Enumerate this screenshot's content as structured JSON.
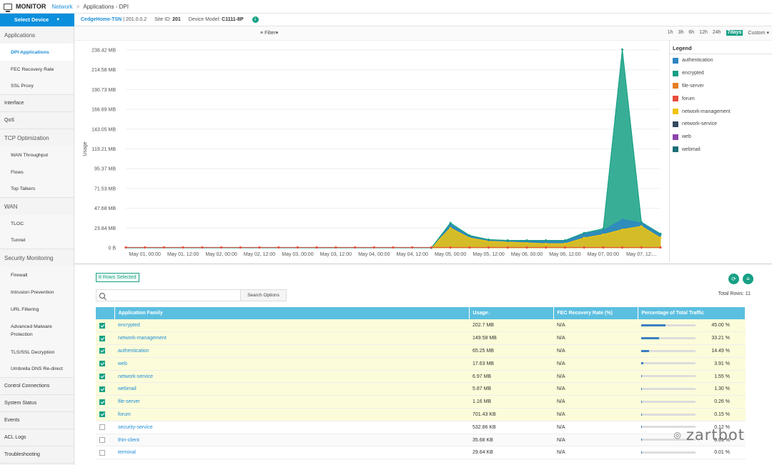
{
  "header": {
    "title": "MONITOR",
    "crumb_network": "Network",
    "crumb_sep": ">",
    "page": "Applications - DPI"
  },
  "device": {
    "select_label": "Select Device",
    "host": "CedgeHome-TSN",
    "host_ip": "| 201.0.0.2",
    "site_label": "Site ID:",
    "site_id": "201",
    "model_label": "Device Model:",
    "model": "C1111-8P",
    "info_icon": "info-icon",
    "info_glyph": "i"
  },
  "sidebar": {
    "applications": "Applications",
    "dpi_applications": "DPI Applications",
    "fec_recovery_rate": "FEC Recovery Rate",
    "ssl_proxy": "SSL Proxy",
    "interface": "Interface",
    "qos": "QoS",
    "tcp_optimization": "TCP Optimization",
    "wan_throughput": "WAN Throughput",
    "flows": "Flows",
    "top_talkers": "Top Talkers",
    "wan": "WAN",
    "tloc": "TLOC",
    "tunnel": "Tunnel",
    "security_monitoring": "Security Monitoring",
    "firewall": "Firewall",
    "intrusion_prevention": "Intrusion Prevention",
    "url_filtering": "URL Filtering",
    "amp_line1": "Advanced Malware",
    "amp_line2": "Protection",
    "tls_ssl_decryption": "TLS/SSL Decryption",
    "umbrella_dns": "Umbrella DNS Re-direct",
    "control_connections": "Control Connections",
    "system_status": "System Status",
    "events": "Events",
    "acl_logs": "ACL Logs",
    "troubleshooting": "Troubleshooting"
  },
  "toolbar": {
    "filter_label": "Filter",
    "t1h": "1h",
    "t3h": "3h",
    "t6h": "6h",
    "t12h": "12h",
    "t24h": "24h",
    "t7days": "7days",
    "custom": "Custom",
    "active_range": "7days"
  },
  "legend": {
    "title": "Legend",
    "items": [
      {
        "label": "authentication",
        "color": "#2e86c1"
      },
      {
        "label": "encrypted",
        "color": "#16a085"
      },
      {
        "label": "file-server",
        "color": "#e67e22"
      },
      {
        "label": "forum",
        "color": "#e74c3c"
      },
      {
        "label": "network-management",
        "color": "#f1c40f"
      },
      {
        "label": "network-service",
        "color": "#34495e"
      },
      {
        "label": "web",
        "color": "#8e44ad"
      },
      {
        "label": "webmail",
        "color": "#1a6e77"
      }
    ]
  },
  "chart_data": {
    "type": "area",
    "ylabel": "Usage",
    "y_ticks": [
      "0 B",
      "23.84 MB",
      "47.68 MB",
      "71.53 MB",
      "95.37 MB",
      "119.21 MB",
      "143.05 MB",
      "166.89 MB",
      "190.73 MB",
      "214.58 MB",
      "238.42 MB"
    ],
    "y_tick_values": [
      0,
      23.84,
      47.68,
      71.53,
      95.37,
      119.21,
      143.05,
      166.89,
      190.73,
      214.58,
      238.42
    ],
    "ylim": [
      0,
      238.42
    ],
    "x_ticks": [
      "May 01, 00:00",
      "May 01, 12:00",
      "May 02, 00:00",
      "May 02, 12:00",
      "May 03, 00:00",
      "May 03, 12:00",
      "May 04, 00:00",
      "May 04, 12:00",
      "May 05, 00:00",
      "May 05, 12:00",
      "May 06, 00:00",
      "May 06, 12:00",
      "May 07, 00:00",
      "May 07, 12:..."
    ],
    "x_hours": [
      0,
      6,
      12,
      18,
      24,
      30,
      36,
      42,
      48,
      54,
      60,
      66,
      72,
      78,
      84,
      90,
      96,
      102,
      108,
      114,
      120,
      126,
      132,
      138,
      144,
      150,
      156,
      162,
      168
    ],
    "series": [
      {
        "name": "authentication",
        "values": [
          0,
          0,
          0,
          0,
          0,
          0,
          0,
          0,
          0,
          0,
          0,
          0,
          0,
          0,
          0,
          0,
          0,
          4,
          2,
          1,
          1,
          2,
          3,
          3,
          5,
          5,
          12,
          4,
          4
        ]
      },
      {
        "name": "encrypted",
        "values": [
          0,
          0,
          0,
          0,
          0,
          0,
          0,
          0,
          0,
          0,
          0,
          0,
          0,
          0,
          0,
          0,
          0,
          2,
          1,
          1,
          1,
          1,
          1,
          1,
          1,
          2,
          205,
          1,
          1
        ]
      },
      {
        "name": "network-management",
        "values": [
          0,
          0,
          0,
          0,
          0,
          0,
          0,
          0,
          0,
          0,
          0,
          0,
          0,
          0,
          0,
          0,
          0,
          24,
          12,
          8,
          7,
          6,
          5,
          5,
          12,
          16,
          22,
          26,
          12
        ]
      },
      {
        "name": "forum",
        "values": [
          0.5,
          0.5,
          0.5,
          0.5,
          0.5,
          0.5,
          0.5,
          0.5,
          0.5,
          0.5,
          0.5,
          0.5,
          0.5,
          0.5,
          0.5,
          0.5,
          0.5,
          0.5,
          0.5,
          0.5,
          0.5,
          0.5,
          0.5,
          0.5,
          0.5,
          0.5,
          0.5,
          0.5,
          0.5
        ]
      }
    ]
  },
  "table": {
    "rows_selected": "8 Rows Selected",
    "search_options": "Search Options",
    "search_placeholder": "",
    "total_rows": "Total Rows: 11",
    "columns": [
      "Application Family",
      "Usage",
      "FEC Recovery Rate (%)",
      "Percentage of Total Traffic"
    ],
    "sort_glyph": "↓",
    "rows": [
      {
        "name": "encrypted",
        "usage": "202.7 MB",
        "fec": "N/A",
        "pct": 45.0,
        "pct_text": "45.00 %",
        "selected": true
      },
      {
        "name": "network-management",
        "usage": "149.58 MB",
        "fec": "N/A",
        "pct": 33.21,
        "pct_text": "33.21 %",
        "selected": true
      },
      {
        "name": "authentication",
        "usage": "65.25 MB",
        "fec": "N/A",
        "pct": 14.49,
        "pct_text": "14.49 %",
        "selected": true
      },
      {
        "name": "web",
        "usage": "17.63 MB",
        "fec": "N/A",
        "pct": 3.91,
        "pct_text": "3.91 %",
        "selected": true
      },
      {
        "name": "network-service",
        "usage": "6.97 MB",
        "fec": "N/A",
        "pct": 1.55,
        "pct_text": "1.55 %",
        "selected": true
      },
      {
        "name": "webmail",
        "usage": "5.87 MB",
        "fec": "N/A",
        "pct": 1.3,
        "pct_text": "1.30 %",
        "selected": true
      },
      {
        "name": "file-server",
        "usage": "1.16 MB",
        "fec": "N/A",
        "pct": 0.26,
        "pct_text": "0.26 %",
        "selected": true
      },
      {
        "name": "forum",
        "usage": "701.43 KB",
        "fec": "N/A",
        "pct": 0.15,
        "pct_text": "0.15 %",
        "selected": true
      },
      {
        "name": "security-service",
        "usage": "532.86 KB",
        "fec": "N/A",
        "pct": 0.12,
        "pct_text": "0.12 %",
        "selected": false
      },
      {
        "name": "thin-client",
        "usage": "35.68 KB",
        "fec": "N/A",
        "pct": 0.01,
        "pct_text": "0.01 %",
        "selected": false
      },
      {
        "name": "terminal",
        "usage": "29.64 KB",
        "fec": "N/A",
        "pct": 0.01,
        "pct_text": "0.01 %",
        "selected": false
      }
    ]
  },
  "watermark": "zartbot"
}
